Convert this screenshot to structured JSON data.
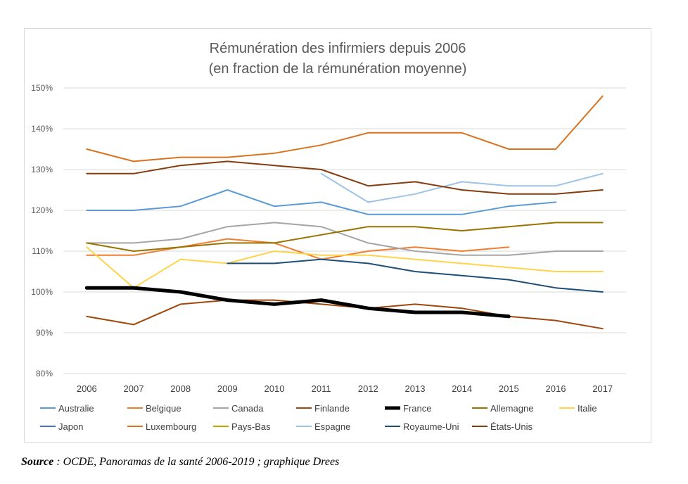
{
  "caption": {
    "source_label": "Source",
    "source_text": " : OCDE, Panoramas de la santé 2006-2019 ; graphique Drees"
  },
  "chart_data": {
    "type": "line",
    "title": "Rémunération des infirmiers depuis 2006",
    "subtitle": "(en fraction de la rémunération moyenne)",
    "xlabel": "",
    "ylabel": "",
    "x": [
      2006,
      2007,
      2008,
      2009,
      2010,
      2011,
      2012,
      2013,
      2014,
      2015,
      2016,
      2017
    ],
    "y_ticks": [
      "80%",
      "90%",
      "100%",
      "110%",
      "120%",
      "130%",
      "140%",
      "150%"
    ],
    "ylim": [
      80,
      150
    ],
    "grid": "horizontal",
    "legend_position": "bottom",
    "series": [
      {
        "name": "Australie",
        "color": "#5b9bd5",
        "width": 2,
        "values": [
          120,
          120,
          121,
          125,
          121,
          122,
          119,
          119,
          119,
          121,
          122,
          null
        ]
      },
      {
        "name": "Belgique",
        "color": "#ed7d31",
        "width": 2,
        "values": [
          109,
          109,
          111,
          113,
          112,
          108,
          110,
          111,
          110,
          111,
          null,
          null
        ]
      },
      {
        "name": "Canada",
        "color": "#a5a5a5",
        "width": 2,
        "values": [
          112,
          112,
          113,
          116,
          117,
          116,
          112,
          110,
          109,
          109,
          110,
          110
        ]
      },
      {
        "name": "Finlande",
        "color": "#9e480e",
        "width": 2,
        "values": [
          94,
          92,
          97,
          98,
          98,
          97,
          96,
          97,
          96,
          94,
          93,
          91
        ]
      },
      {
        "name": "France",
        "color": "#000000",
        "width": 5,
        "values": [
          101,
          101,
          100,
          98,
          97,
          98,
          96,
          95,
          95,
          94,
          null,
          null
        ]
      },
      {
        "name": "Allemagne",
        "color": "#997300",
        "width": 2,
        "values": [
          112,
          110,
          111,
          112,
          112,
          114,
          116,
          116,
          115,
          116,
          117,
          117
        ]
      },
      {
        "name": "Italie",
        "color": "#ffd34a",
        "width": 2,
        "values": [
          111,
          101,
          108,
          107,
          110,
          109,
          109,
          108,
          107,
          106,
          105,
          105
        ]
      },
      {
        "name": "Japon",
        "color": "#4472c4",
        "width": 2,
        "values": [
          null,
          null,
          null,
          null,
          null,
          null,
          null,
          null,
          null,
          null,
          null,
          null
        ]
      },
      {
        "name": "Luxembourg",
        "color": "#d9731f",
        "width": 2,
        "values": [
          135,
          132,
          133,
          133,
          134,
          136,
          139,
          139,
          139,
          135,
          135,
          148
        ]
      },
      {
        "name": "Pays-Bas",
        "color": "#c9a300",
        "width": 2,
        "values": [
          null,
          null,
          null,
          null,
          null,
          null,
          null,
          null,
          null,
          null,
          null,
          null
        ]
      },
      {
        "name": "Espagne",
        "color": "#9dc3e6",
        "width": 2,
        "values": [
          null,
          null,
          null,
          null,
          null,
          129,
          122,
          124,
          127,
          126,
          126,
          129
        ]
      },
      {
        "name": "Royaume-Uni",
        "color": "#1f4e79",
        "width": 2,
        "values": [
          null,
          null,
          null,
          107,
          107,
          108,
          107,
          105,
          104,
          103,
          101,
          100
        ]
      },
      {
        "name": "États-Unis",
        "color": "#843c0c",
        "width": 2,
        "values": [
          129,
          129,
          131,
          132,
          131,
          130,
          126,
          127,
          125,
          124,
          124,
          125
        ]
      }
    ],
    "legend_rows": [
      [
        "Australie",
        "Belgique",
        "Canada",
        "Finlande",
        "France",
        "Allemagne",
        "Italie"
      ],
      [
        "Japon",
        "Luxembourg",
        "Pays-Bas",
        "Espagne",
        "Royaume-Uni",
        "États-Unis"
      ]
    ]
  }
}
